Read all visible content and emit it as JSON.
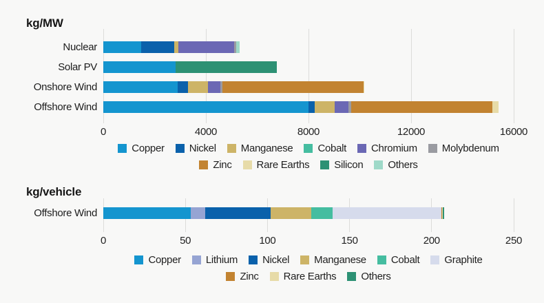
{
  "page": {
    "background": "#f8f8f7",
    "text_color": "#1f1f1f",
    "grid_color": "#dcdcda"
  },
  "chart_data": [
    {
      "type": "bar",
      "orientation": "horizontal",
      "stacked": true,
      "title": "kg/MW",
      "xlabel": "",
      "ylabel": "",
      "xlim": [
        0,
        16000
      ],
      "ticks": [
        "0",
        "4000",
        "8000",
        "12000",
        "16000"
      ],
      "grid": true,
      "legend_position": "bottom",
      "categories": [
        "Nuclear",
        "Solar PV",
        "Onshore Wind",
        "Offshore Wind"
      ],
      "series": [
        {
          "name": "Copper",
          "values": [
            1473,
            2822,
            2900,
            8000
          ]
        },
        {
          "name": "Nickel",
          "values": [
            1297,
            0,
            404,
            240
          ]
        },
        {
          "name": "Manganese",
          "values": [
            148,
            0,
            780,
            790
          ]
        },
        {
          "name": "Cobalt",
          "values": [
            0,
            0,
            0,
            0
          ]
        },
        {
          "name": "Chromium",
          "values": [
            2190,
            0,
            470,
            525
          ]
        },
        {
          "name": "Molybdenum",
          "values": [
            70,
            0,
            99,
            109
          ]
        },
        {
          "name": "Zinc",
          "values": [
            0,
            0,
            5500,
            5500
          ]
        },
        {
          "name": "Rare Earths",
          "values": [
            0,
            0,
            14,
            239
          ]
        },
        {
          "name": "Silicon",
          "values": [
            0,
            3948,
            0,
            0
          ]
        },
        {
          "name": "Others",
          "values": [
            130,
            0,
            0,
            0
          ]
        }
      ],
      "legend_rows": [
        [
          "Copper",
          "Nickel",
          "Manganese",
          "Cobalt",
          "Chromium",
          "Molybdenum"
        ],
        [
          "Zinc",
          "Rare Earths",
          "Silicon",
          "Others"
        ]
      ],
      "colors": {
        "Copper": "#1495cf",
        "Nickel": "#0a61ab",
        "Manganese": "#cdb467",
        "Cobalt": "#45bda0",
        "Chromium": "#6b68b4",
        "Molybdenum": "#9a9ba1",
        "Zinc": "#c28331",
        "Rare Earths": "#e7dba8",
        "Silicon": "#2d9174",
        "Others": "#9ed9c8"
      }
    },
    {
      "type": "bar",
      "orientation": "horizontal",
      "stacked": true,
      "title": "kg/vehicle",
      "xlabel": "",
      "ylabel": "",
      "xlim": [
        0,
        250
      ],
      "ticks": [
        "0",
        "50",
        "100",
        "150",
        "200",
        "250"
      ],
      "grid": true,
      "legend_position": "bottom",
      "categories": [
        "Offshore Wind"
      ],
      "series": [
        {
          "name": "Copper",
          "values": [
            53.2
          ]
        },
        {
          "name": "Lithium",
          "values": [
            8.9
          ]
        },
        {
          "name": "Nickel",
          "values": [
            39.9
          ]
        },
        {
          "name": "Manganese",
          "values": [
            24.5
          ]
        },
        {
          "name": "Cobalt",
          "values": [
            13.3
          ]
        },
        {
          "name": "Graphite",
          "values": [
            66.3
          ]
        },
        {
          "name": "Zinc",
          "values": [
            0.1
          ]
        },
        {
          "name": "Rare Earths",
          "values": [
            0.5
          ]
        },
        {
          "name": "Others",
          "values": [
            1.0
          ]
        }
      ],
      "legend_rows": [
        [
          "Copper",
          "Lithium",
          "Nickel",
          "Manganese",
          "Cobalt",
          "Graphite"
        ],
        [
          "Zinc",
          "Rare Earths",
          "Others"
        ]
      ],
      "colors": {
        "Copper": "#1495cf",
        "Lithium": "#96a4d3",
        "Nickel": "#0a61ab",
        "Manganese": "#cdb467",
        "Cobalt": "#45bda0",
        "Graphite": "#d6dbec",
        "Zinc": "#c28331",
        "Rare Earths": "#e7dba8",
        "Others": "#2d9174"
      }
    }
  ]
}
